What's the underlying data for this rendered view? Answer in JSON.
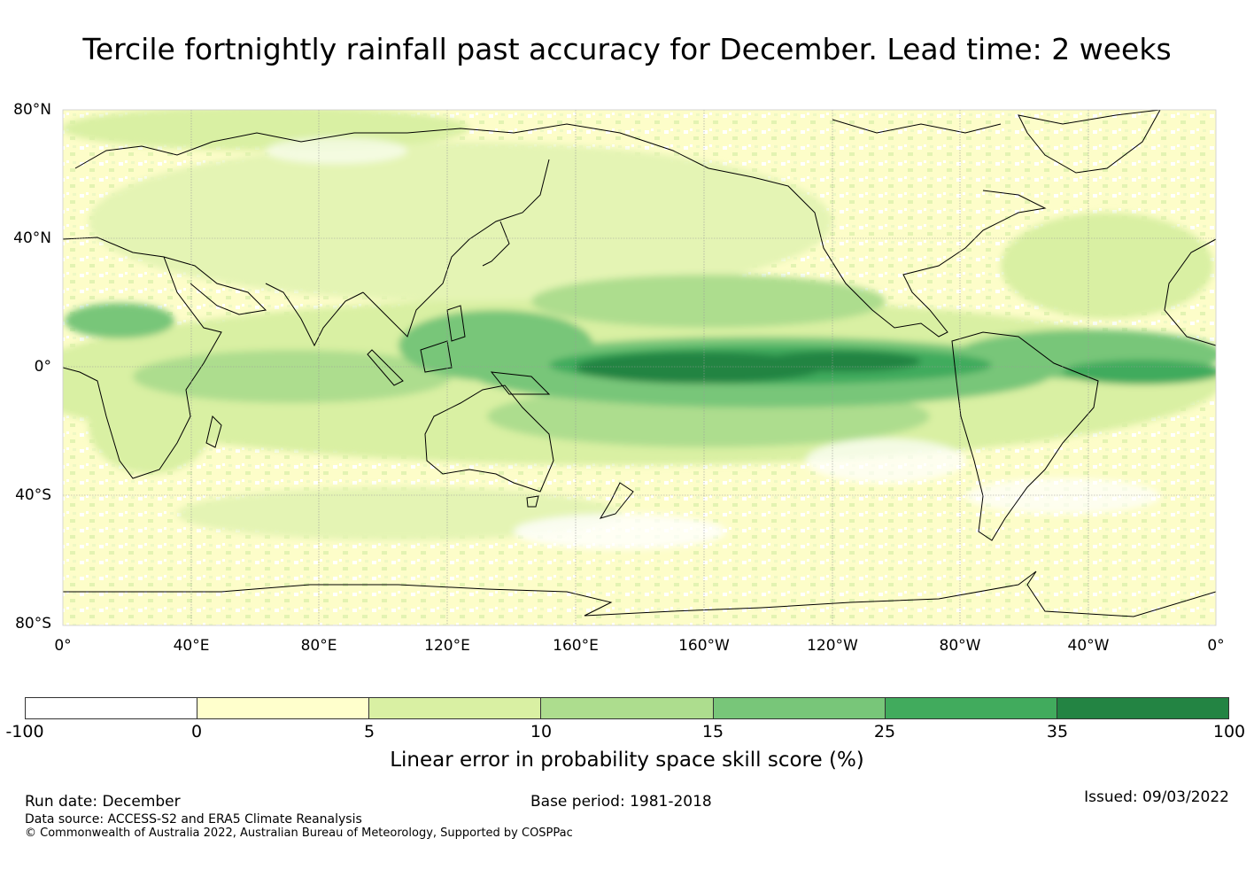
{
  "title": "Tercile fortnightly rainfall past accuracy for December. Lead time: 2 weeks",
  "map": {
    "lat_labels": [
      "80°N",
      "40°N",
      "0°",
      "40°S",
      "80°S"
    ],
    "lon_labels": [
      "0°",
      "40°E",
      "80°E",
      "120°E",
      "160°E",
      "160°W",
      "120°W",
      "80°W",
      "40°W",
      "0°"
    ],
    "background_color": "#fdfdc9",
    "features": [
      {
        "name": "equatorial-pacific-band",
        "level": "35-100",
        "color": "#238443"
      },
      {
        "name": "itcz-band",
        "level": "25-35",
        "color": "#41ab5d"
      },
      {
        "name": "maritime-continent",
        "level": "15-25",
        "color": "#78c679"
      },
      {
        "name": "arabian-sea-region",
        "level": "15-25",
        "color": "#78c679"
      },
      {
        "name": "atlantic-equatorial-band",
        "level": "25-35",
        "color": "#41ab5d"
      }
    ]
  },
  "colorbar": {
    "ticks": [
      "-100",
      "0",
      "5",
      "10",
      "15",
      "25",
      "35",
      "100"
    ],
    "colors": [
      "#ffffff",
      "#ffffcc",
      "#d9f0a3",
      "#addd8e",
      "#78c679",
      "#41ab5d",
      "#238443"
    ],
    "label": "Linear error in probability space skill score (%)"
  },
  "footer": {
    "run_date": "Run date: December",
    "base_period": "Base period: 1981-2018",
    "issued": "Issued: 09/03/2022",
    "data_source": "Data source: ACCESS-S2 and ERA5 Climate Reanalysis",
    "copyright": "© Commonwealth of Australia 2022, Australian Bureau of Meteorology, Supported by COSPPac"
  }
}
